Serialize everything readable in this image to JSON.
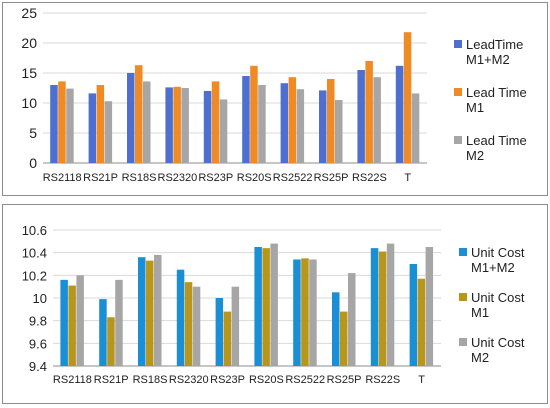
{
  "chart_data": [
    {
      "type": "bar",
      "categories": [
        "RS2118",
        "RS21P",
        "RS18S",
        "RS2320",
        "RS23P",
        "RS20S",
        "RS2522",
        "RS25P",
        "RS22S",
        "T"
      ],
      "ylim": [
        0,
        25
      ],
      "yticks": [
        "0",
        "5",
        "10",
        "15",
        "20",
        "25"
      ],
      "grid": true,
      "legend_position": "right",
      "series": [
        {
          "name": "LeadTime M1+M2",
          "legend_lines": [
            "LeadTime",
            "M1+M2"
          ],
          "color": "#4f6fd0",
          "values": [
            13.0,
            11.6,
            15.0,
            12.6,
            12.0,
            14.5,
            13.3,
            12.1,
            15.5,
            16.2
          ]
        },
        {
          "name": "Lead Time M1",
          "legend_lines": [
            "Lead Time",
            "M1"
          ],
          "color": "#f08a24",
          "values": [
            13.6,
            13.0,
            16.3,
            12.7,
            13.6,
            16.2,
            14.3,
            14.0,
            17.0,
            21.8
          ]
        },
        {
          "name": "Lead Time M2",
          "legend_lines": [
            "Lead Time",
            "M2"
          ],
          "color": "#a6a6a6",
          "values": [
            12.4,
            10.3,
            13.6,
            12.5,
            10.6,
            13.0,
            12.3,
            10.5,
            14.3,
            11.6
          ]
        }
      ]
    },
    {
      "type": "bar",
      "categories": [
        "RS2118",
        "RS21P",
        "RS18S",
        "RS2320",
        "RS23P",
        "RS20S",
        "RS2522",
        "RS25P",
        "RS22S",
        "T"
      ],
      "ylim": [
        9.4,
        10.6
      ],
      "yticks": [
        "9.4",
        "9.6",
        "9.8",
        "10",
        "10.2",
        "10.4",
        "10.6"
      ],
      "grid": true,
      "legend_position": "right",
      "series": [
        {
          "name": "Unit Cost M1+M2",
          "legend_lines": [
            "Unit Cost",
            "M1+M2"
          ],
          "color": "#1a8fd6",
          "values": [
            10.16,
            9.99,
            10.36,
            10.25,
            10.0,
            10.45,
            10.34,
            10.05,
            10.44,
            10.3
          ]
        },
        {
          "name": "Unit Cost M1",
          "legend_lines": [
            "Unit Cost",
            "M1"
          ],
          "color": "#b8961c",
          "values": [
            10.11,
            9.83,
            10.33,
            10.14,
            9.88,
            10.44,
            10.35,
            9.88,
            10.41,
            10.17
          ]
        },
        {
          "name": "Unit Cost M2",
          "legend_lines": [
            "Unit Cost",
            "M2"
          ],
          "color": "#a6a6a6",
          "values": [
            10.2,
            10.16,
            10.38,
            10.1,
            10.1,
            10.48,
            10.34,
            10.22,
            10.48,
            10.45
          ]
        }
      ]
    }
  ]
}
